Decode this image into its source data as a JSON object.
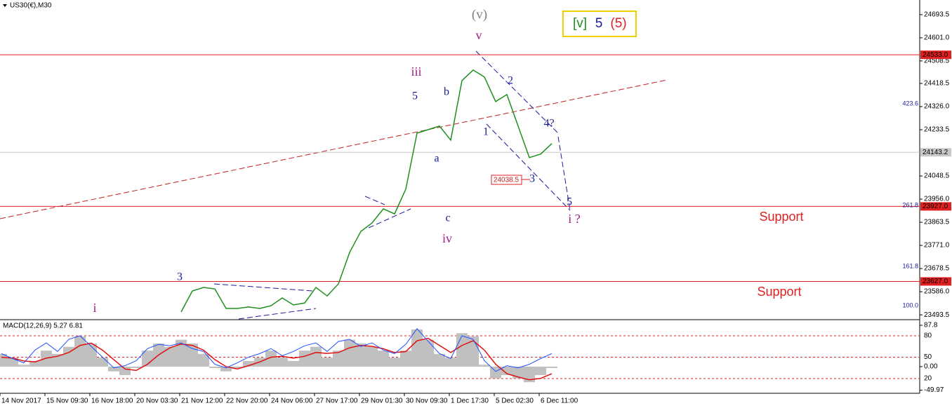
{
  "header": "US30(€),M30",
  "chart_data": [
    {
      "type": "line",
      "categories": [
        "14 Nov 2017",
        null,
        null,
        null,
        "15 Nov 09:30",
        null,
        null,
        null,
        "16 Nov 18:00",
        null,
        null,
        null,
        "20 Nov 03:30",
        null,
        null,
        null,
        "21 Nov 12:00",
        null,
        null,
        null,
        "22 Nov 20:00",
        null,
        null,
        null,
        "24 Nov 06:00",
        null,
        null,
        null,
        "27 Nov 17:00",
        null,
        null,
        null,
        "29 Nov 01:30",
        null,
        null,
        null,
        "30 Nov 09:30",
        null,
        null,
        null,
        "1 Dec 17:30",
        null,
        null,
        null,
        "5 Dec 02:30",
        null,
        null,
        null,
        "6 Dec 11:00",
        null
      ],
      "values": [
        null,
        null,
        null,
        null,
        null,
        null,
        null,
        null,
        null,
        null,
        null,
        null,
        null,
        null,
        null,
        null,
        23505,
        23589,
        23603,
        23597,
        23519,
        23519,
        23525,
        23519,
        23530,
        23561,
        23533,
        23541,
        23603,
        23569,
        23617,
        23743,
        23827,
        23861,
        23917,
        23897,
        23996,
        24220,
        24234,
        24248,
        24192,
        24430,
        24472,
        24444,
        24346,
        24374,
        24248,
        24122,
        24136,
        24178
      ],
      "color": "#1f8f1f",
      "ylim": [
        23477,
        24752
      ],
      "yticks": [
        24693.5,
        {
          "value": 24601,
          "label": "24601.0"
        },
        24508.5,
        24418.5,
        {
          "value": 24326,
          "label": "24326.0"
        },
        24233.5,
        24048.5,
        {
          "value": 23956,
          "label": "23956.0"
        },
        23863.5,
        {
          "value": 23771,
          "label": "23771.0"
        },
        23678.5,
        {
          "value": 23586,
          "label": "23586.0"
        },
        23493.5
      ],
      "levels": [
        {
          "value": 24533,
          "label": "24533.0",
          "color": "#e02020"
        },
        {
          "value": 24143.2,
          "label": "24143.2",
          "color": "#c8c8c8"
        },
        {
          "value": 23927,
          "label": "23927.0",
          "color": "#e02020"
        },
        {
          "value": 23627,
          "label": "23627.0",
          "color": "#e02020"
        }
      ],
      "annotations": [
        "(v)",
        "v",
        "iii",
        "5",
        "b",
        "a",
        "c",
        "iv",
        "1",
        "2",
        "3",
        "4?",
        "5",
        "i ?",
        "3",
        "i",
        "Support",
        "Support",
        "423.6",
        "261.8",
        "161.8",
        "100.0",
        "24038.5",
        "[v]",
        "5",
        "(5)"
      ]
    },
    {
      "type": "macd",
      "title": "MACD(12,26,9) 5.27 6.81",
      "ylim": [
        -55.1,
        98.2
      ],
      "yticks": [
        87.8,
        {
          "value": 0,
          "label": "0.00"
        },
        -49.97
      ],
      "y2lim": [
        0.3,
        101.6
      ],
      "y2ticks": [
        80,
        50,
        20
      ],
      "series": [
        {
          "kind": "bar",
          "color": "#c0c0c0",
          "values": [
            27,
            19,
            4,
            12,
            34,
            27,
            42,
            64,
            49,
            19,
            -10,
            -18,
            -3,
            34,
            49,
            42,
            57,
            49,
            27,
            -3,
            -10,
            -3,
            12,
            19,
            34,
            19,
            12,
            34,
            42,
            19,
            34,
            57,
            49,
            42,
            34,
            19,
            34,
            79,
            57,
            27,
            19,
            71,
            64,
            4,
            -25,
            -18,
            -25,
            -33,
            -18,
            -3
          ]
        },
        {
          "kind": "line",
          "color": "#e01010",
          "values": [
            20,
            18,
            12,
            10,
            18,
            22,
            30,
            45,
            50,
            35,
            15,
            -5,
            -8,
            5,
            25,
            40,
            48,
            45,
            35,
            15,
            0,
            -5,
            2,
            10,
            20,
            22,
            18,
            22,
            30,
            28,
            30,
            40,
            45,
            43,
            38,
            30,
            32,
            55,
            60,
            45,
            30,
            45,
            55,
            35,
            5,
            -15,
            -22,
            -28,
            -25,
            -15
          ]
        },
        {
          "kind": "line",
          "axis": "y2",
          "color": "#2050ff",
          "values": [
            55,
            48,
            42,
            60,
            70,
            58,
            75,
            80,
            65,
            50,
            35,
            38,
            45,
            62,
            68,
            66,
            70,
            62,
            58,
            40,
            35,
            42,
            50,
            55,
            62,
            52,
            58,
            66,
            70,
            58,
            72,
            75,
            65,
            70,
            60,
            55,
            68,
            90,
            72,
            55,
            48,
            80,
            75,
            45,
            30,
            38,
            35,
            40,
            48,
            55
          ]
        }
      ]
    }
  ]
}
